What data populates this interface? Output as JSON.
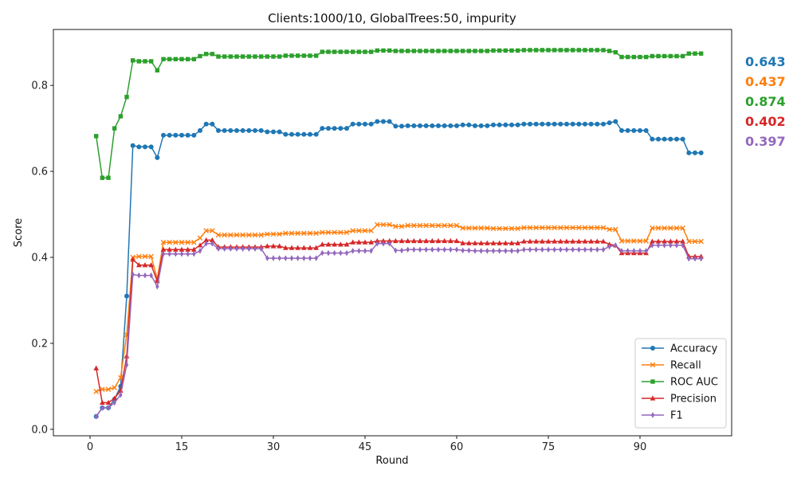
{
  "chart_data": {
    "type": "line",
    "title": "Clients:1000/10, GlobalTrees:50, impurity",
    "xlabel": "Round",
    "ylabel": "Score",
    "xlim": [
      -6,
      105
    ],
    "ylim": [
      -0.015,
      0.93
    ],
    "xticks": [
      0,
      15,
      30,
      45,
      60,
      75,
      90
    ],
    "yticks": [
      0.0,
      0.2,
      0.4,
      0.6,
      0.8
    ],
    "ytick_labels": [
      "0.0",
      "0.2",
      "0.4",
      "0.6",
      "0.8"
    ],
    "grid": false,
    "legend_position": "lower right",
    "x": [
      1,
      2,
      3,
      4,
      5,
      6,
      7,
      8,
      9,
      10,
      11,
      12,
      13,
      14,
      15,
      16,
      17,
      18,
      19,
      20,
      21,
      22,
      23,
      24,
      25,
      26,
      27,
      28,
      29,
      30,
      31,
      32,
      33,
      34,
      35,
      36,
      37,
      38,
      39,
      40,
      41,
      42,
      43,
      44,
      45,
      46,
      47,
      48,
      49,
      50,
      51,
      52,
      53,
      54,
      55,
      56,
      57,
      58,
      59,
      60,
      61,
      62,
      63,
      64,
      65,
      66,
      67,
      68,
      69,
      70,
      71,
      72,
      73,
      74,
      75,
      76,
      77,
      78,
      79,
      80,
      81,
      82,
      83,
      84,
      85,
      86,
      87,
      88,
      89,
      90,
      91,
      92,
      93,
      94,
      95,
      96,
      97,
      98,
      99,
      100
    ],
    "series": [
      {
        "name": "Accuracy",
        "color": "#1f77b4",
        "marker": "circle",
        "values": [
          0.03,
          0.05,
          0.05,
          0.07,
          0.1,
          0.31,
          0.66,
          0.657,
          0.657,
          0.657,
          0.632,
          0.684,
          0.684,
          0.684,
          0.684,
          0.684,
          0.684,
          0.695,
          0.71,
          0.71,
          0.695,
          0.695,
          0.695,
          0.695,
          0.695,
          0.695,
          0.695,
          0.695,
          0.692,
          0.692,
          0.692,
          0.686,
          0.686,
          0.686,
          0.686,
          0.686,
          0.686,
          0.7,
          0.7,
          0.7,
          0.7,
          0.7,
          0.71,
          0.71,
          0.71,
          0.71,
          0.716,
          0.716,
          0.716,
          0.705,
          0.705,
          0.706,
          0.706,
          0.706,
          0.706,
          0.706,
          0.706,
          0.706,
          0.706,
          0.706,
          0.708,
          0.708,
          0.706,
          0.706,
          0.706,
          0.708,
          0.708,
          0.708,
          0.708,
          0.708,
          0.71,
          0.71,
          0.71,
          0.71,
          0.71,
          0.71,
          0.71,
          0.71,
          0.71,
          0.71,
          0.71,
          0.71,
          0.71,
          0.71,
          0.713,
          0.716,
          0.695,
          0.695,
          0.695,
          0.695,
          0.695,
          0.675,
          0.675,
          0.675,
          0.675,
          0.675,
          0.675,
          0.643,
          0.643,
          0.643
        ]
      },
      {
        "name": "Recall",
        "color": "#ff7f0e",
        "marker": "x",
        "values": [
          0.088,
          0.093,
          0.093,
          0.097,
          0.12,
          0.22,
          0.4,
          0.402,
          0.402,
          0.402,
          0.35,
          0.435,
          0.435,
          0.435,
          0.435,
          0.435,
          0.435,
          0.445,
          0.462,
          0.462,
          0.452,
          0.452,
          0.452,
          0.452,
          0.452,
          0.452,
          0.452,
          0.452,
          0.454,
          0.454,
          0.454,
          0.456,
          0.456,
          0.456,
          0.456,
          0.456,
          0.456,
          0.458,
          0.458,
          0.458,
          0.458,
          0.458,
          0.462,
          0.462,
          0.462,
          0.462,
          0.476,
          0.476,
          0.476,
          0.472,
          0.472,
          0.474,
          0.474,
          0.474,
          0.474,
          0.474,
          0.474,
          0.474,
          0.474,
          0.474,
          0.468,
          0.468,
          0.468,
          0.468,
          0.468,
          0.467,
          0.467,
          0.467,
          0.467,
          0.467,
          0.469,
          0.469,
          0.469,
          0.469,
          0.469,
          0.469,
          0.469,
          0.469,
          0.469,
          0.469,
          0.469,
          0.469,
          0.469,
          0.469,
          0.465,
          0.465,
          0.438,
          0.438,
          0.438,
          0.438,
          0.438,
          0.468,
          0.468,
          0.468,
          0.468,
          0.468,
          0.468,
          0.437,
          0.437,
          0.437
        ]
      },
      {
        "name": "ROC AUC",
        "color": "#2ca02c",
        "marker": "square",
        "values": [
          0.682,
          0.585,
          0.585,
          0.7,
          0.728,
          0.773,
          0.858,
          0.856,
          0.856,
          0.856,
          0.835,
          0.861,
          0.861,
          0.861,
          0.861,
          0.861,
          0.861,
          0.868,
          0.873,
          0.873,
          0.867,
          0.867,
          0.867,
          0.867,
          0.867,
          0.867,
          0.867,
          0.867,
          0.867,
          0.867,
          0.867,
          0.869,
          0.869,
          0.869,
          0.869,
          0.869,
          0.869,
          0.878,
          0.878,
          0.878,
          0.878,
          0.878,
          0.878,
          0.878,
          0.878,
          0.878,
          0.881,
          0.881,
          0.881,
          0.88,
          0.88,
          0.88,
          0.88,
          0.88,
          0.88,
          0.88,
          0.88,
          0.88,
          0.88,
          0.88,
          0.88,
          0.88,
          0.88,
          0.88,
          0.88,
          0.881,
          0.881,
          0.881,
          0.881,
          0.881,
          0.882,
          0.882,
          0.882,
          0.882,
          0.882,
          0.882,
          0.882,
          0.882,
          0.882,
          0.882,
          0.882,
          0.882,
          0.882,
          0.882,
          0.88,
          0.877,
          0.866,
          0.866,
          0.866,
          0.866,
          0.866,
          0.868,
          0.868,
          0.868,
          0.868,
          0.868,
          0.868,
          0.874,
          0.874,
          0.874
        ]
      },
      {
        "name": "Precision",
        "color": "#d62728",
        "marker": "triangle",
        "values": [
          0.142,
          0.062,
          0.062,
          0.072,
          0.09,
          0.17,
          0.395,
          0.382,
          0.382,
          0.382,
          0.345,
          0.418,
          0.418,
          0.418,
          0.418,
          0.418,
          0.418,
          0.428,
          0.44,
          0.44,
          0.424,
          0.424,
          0.424,
          0.424,
          0.424,
          0.424,
          0.424,
          0.424,
          0.426,
          0.426,
          0.426,
          0.422,
          0.422,
          0.422,
          0.422,
          0.422,
          0.422,
          0.43,
          0.43,
          0.43,
          0.43,
          0.43,
          0.435,
          0.435,
          0.435,
          0.435,
          0.438,
          0.438,
          0.438,
          0.438,
          0.438,
          0.438,
          0.438,
          0.438,
          0.438,
          0.438,
          0.438,
          0.438,
          0.438,
          0.438,
          0.433,
          0.433,
          0.433,
          0.433,
          0.433,
          0.433,
          0.433,
          0.433,
          0.433,
          0.433,
          0.437,
          0.437,
          0.437,
          0.437,
          0.437,
          0.437,
          0.437,
          0.437,
          0.437,
          0.437,
          0.437,
          0.437,
          0.437,
          0.437,
          0.43,
          0.428,
          0.41,
          0.41,
          0.41,
          0.41,
          0.41,
          0.437,
          0.437,
          0.437,
          0.437,
          0.437,
          0.437,
          0.402,
          0.402,
          0.402
        ]
      },
      {
        "name": "F1",
        "color": "#9467bd",
        "marker": "thin_diamond",
        "values": [
          0.03,
          0.05,
          0.05,
          0.062,
          0.08,
          0.15,
          0.36,
          0.358,
          0.358,
          0.358,
          0.332,
          0.408,
          0.408,
          0.408,
          0.408,
          0.408,
          0.408,
          0.415,
          0.432,
          0.432,
          0.42,
          0.42,
          0.42,
          0.42,
          0.42,
          0.42,
          0.42,
          0.42,
          0.398,
          0.398,
          0.398,
          0.398,
          0.398,
          0.398,
          0.398,
          0.398,
          0.398,
          0.41,
          0.41,
          0.41,
          0.41,
          0.41,
          0.415,
          0.415,
          0.415,
          0.415,
          0.432,
          0.432,
          0.432,
          0.416,
          0.416,
          0.418,
          0.418,
          0.418,
          0.418,
          0.418,
          0.418,
          0.418,
          0.418,
          0.418,
          0.416,
          0.416,
          0.415,
          0.415,
          0.415,
          0.415,
          0.415,
          0.415,
          0.415,
          0.415,
          0.418,
          0.418,
          0.418,
          0.418,
          0.418,
          0.418,
          0.418,
          0.418,
          0.418,
          0.418,
          0.418,
          0.418,
          0.418,
          0.418,
          0.425,
          0.428,
          0.415,
          0.415,
          0.415,
          0.415,
          0.415,
          0.428,
          0.428,
          0.428,
          0.428,
          0.428,
          0.428,
          0.397,
          0.397,
          0.397
        ]
      }
    ],
    "final_values": [
      {
        "label": "0.643",
        "color": "#1f77b4"
      },
      {
        "label": "0.437",
        "color": "#ff7f0e"
      },
      {
        "label": "0.874",
        "color": "#2ca02c"
      },
      {
        "label": "0.402",
        "color": "#d62728"
      },
      {
        "label": "0.397",
        "color": "#9467bd"
      }
    ]
  }
}
